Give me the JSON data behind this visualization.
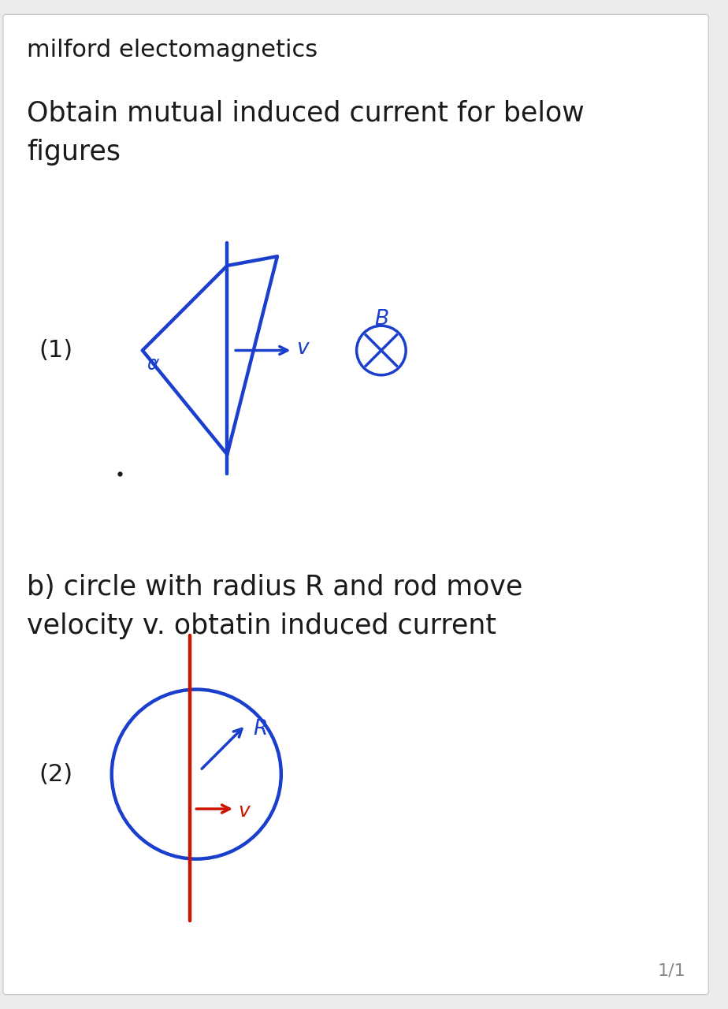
{
  "bg_color": "#ebebeb",
  "page_bg": "#ffffff",
  "title": "milford electomagnetics",
  "subtitle": "Obtain mutual induced current for below\nfigures",
  "part_b_text": "b) circle with radius R and rod move\nvelocity v. obtatin induced current",
  "page_num": "1/1",
  "blue_color": "#1a3fcc",
  "red_color": "#cc1500",
  "dark_color": "#1a1a1a",
  "gray_color": "#888888",
  "title_fontsize": 22,
  "body_fontsize": 25,
  "label_fontsize": 20
}
